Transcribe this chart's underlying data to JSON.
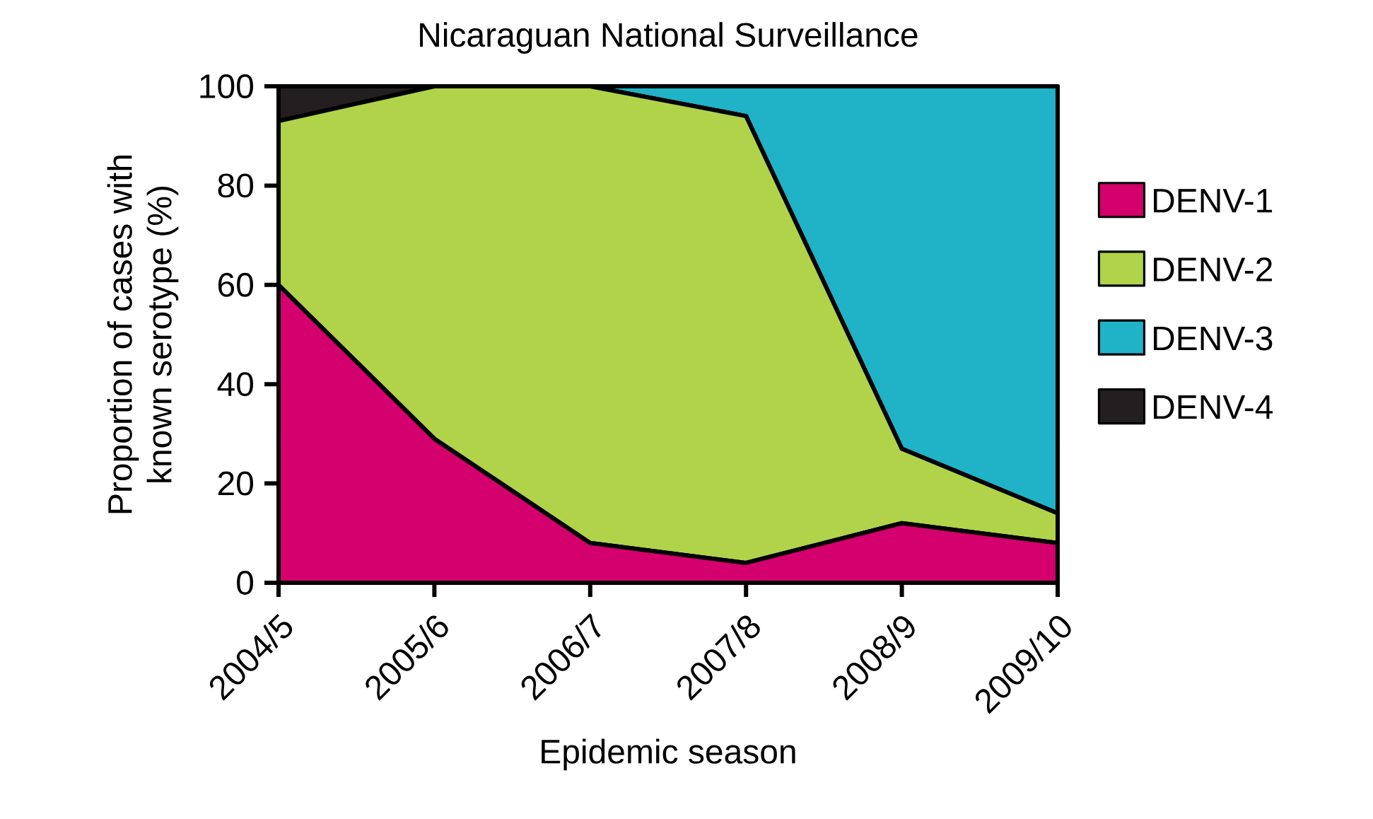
{
  "chart_data": {
    "type": "area",
    "stacked": true,
    "title": "Nicaraguan National Surveillance",
    "xlabel": "Epidemic season",
    "ylabel": "Proportion of cases with known serotype (%)",
    "categories": [
      "2004/5",
      "2005/6",
      "2006/7",
      "2007/8",
      "2008/9",
      "2009/10"
    ],
    "series": [
      {
        "name": "DENV-1",
        "color": "#d3006d",
        "values": [
          60,
          29,
          8,
          4,
          12,
          8
        ]
      },
      {
        "name": "DENV-2",
        "color": "#b1d34a",
        "values": [
          33,
          71,
          92,
          90,
          15,
          6
        ]
      },
      {
        "name": "DENV-3",
        "color": "#20b2c6",
        "values": [
          0,
          0,
          0,
          6,
          73,
          86
        ]
      },
      {
        "name": "DENV-4",
        "color": "#231f20",
        "values": [
          7,
          0,
          0,
          0,
          0,
          0
        ]
      }
    ],
    "ylim": [
      0,
      100
    ],
    "yticks": [
      0,
      20,
      40,
      60,
      80,
      100
    ],
    "legend": "right"
  }
}
